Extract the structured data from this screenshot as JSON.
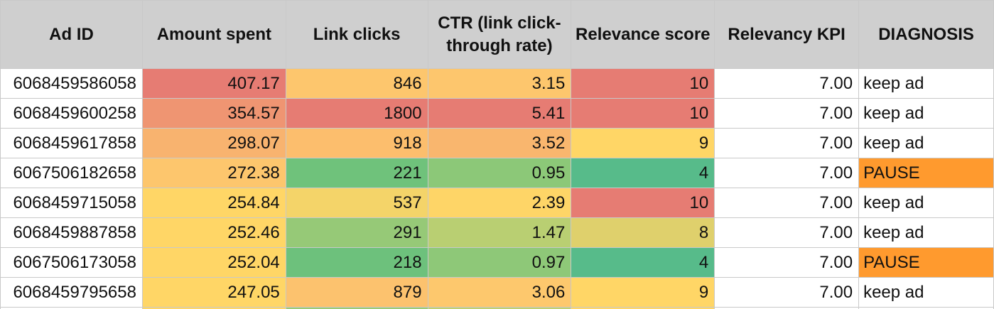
{
  "columns": [
    {
      "key": "ad_id",
      "label": "Ad ID"
    },
    {
      "key": "amount_spent",
      "label": "Amount spent"
    },
    {
      "key": "link_clicks",
      "label": "Link clicks"
    },
    {
      "key": "ctr",
      "label": "CTR (link click-through rate)"
    },
    {
      "key": "relevance_score",
      "label": "Relevance score"
    },
    {
      "key": "relevancy_kpi",
      "label": "Relevancy KPI"
    },
    {
      "key": "diagnosis",
      "label": "DIAGNOSIS"
    }
  ],
  "rows": [
    {
      "ad_id": "6068459586058",
      "amount_spent": "407.17",
      "link_clicks": "846",
      "ctr": "3.15",
      "relevance_score": "10",
      "relevancy_kpi": "7.00",
      "diagnosis": "keep ad",
      "colors": {
        "amount_spent": "#e67c73",
        "link_clicks": "#fdc66d",
        "ctr": "#fdc66d",
        "relevance_score": "#e67c73",
        "diagnosis": "#ffffff"
      }
    },
    {
      "ad_id": "6068459600258",
      "amount_spent": "354.57",
      "link_clicks": "1800",
      "ctr": "5.41",
      "relevance_score": "10",
      "relevancy_kpi": "7.00",
      "diagnosis": "keep ad",
      "colors": {
        "amount_spent": "#ef9572",
        "link_clicks": "#e67c73",
        "ctr": "#e67c73",
        "relevance_score": "#e67c73",
        "diagnosis": "#ffffff"
      }
    },
    {
      "ad_id": "6068459617858",
      "amount_spent": "298.07",
      "link_clicks": "918",
      "ctr": "3.52",
      "relevance_score": "9",
      "relevancy_kpi": "7.00",
      "diagnosis": "keep ad",
      "colors": {
        "amount_spent": "#f8b36f",
        "link_clicks": "#fcbe6d",
        "ctr": "#f9b66e",
        "relevance_score": "#ffd666",
        "diagnosis": "#ffffff"
      }
    },
    {
      "ad_id": "6067506182658",
      "amount_spent": "272.38",
      "link_clicks": "221",
      "ctr": "0.95",
      "relevance_score": "4",
      "relevancy_kpi": "7.00",
      "diagnosis": "PAUSE",
      "colors": {
        "amount_spent": "#fdc66d",
        "link_clicks": "#6fc27b",
        "ctr": "#8cc878",
        "relevance_score": "#57bb8a",
        "diagnosis": "#ff9a2e"
      }
    },
    {
      "ad_id": "6068459715058",
      "amount_spent": "254.84",
      "link_clicks": "537",
      "ctr": "2.39",
      "relevance_score": "10",
      "relevancy_kpi": "7.00",
      "diagnosis": "keep ad",
      "colors": {
        "amount_spent": "#ffd666",
        "link_clicks": "#f4d469",
        "ctr": "#fed567",
        "relevance_score": "#e67c73",
        "diagnosis": "#ffffff"
      }
    },
    {
      "ad_id": "6068459887858",
      "amount_spent": "252.46",
      "link_clicks": "291",
      "ctr": "1.47",
      "relevance_score": "8",
      "relevancy_kpi": "7.00",
      "diagnosis": "keep ad",
      "colors": {
        "amount_spent": "#ffd666",
        "link_clicks": "#96c977",
        "ctr": "#b9cf72",
        "relevance_score": "#dfd06c",
        "diagnosis": "#ffffff"
      }
    },
    {
      "ad_id": "6067506173058",
      "amount_spent": "252.04",
      "link_clicks": "218",
      "ctr": "0.97",
      "relevance_score": "4",
      "relevancy_kpi": "7.00",
      "diagnosis": "PAUSE",
      "colors": {
        "amount_spent": "#ffd666",
        "link_clicks": "#6dc17c",
        "ctr": "#8ec878",
        "relevance_score": "#57bb8a",
        "diagnosis": "#ff9a2e"
      }
    },
    {
      "ad_id": "6068459795658",
      "amount_spent": "247.05",
      "link_clicks": "879",
      "ctr": "3.06",
      "relevance_score": "9",
      "relevancy_kpi": "7.00",
      "diagnosis": "keep ad",
      "colors": {
        "amount_spent": "#ffd666",
        "link_clicks": "#fcc26e",
        "ctr": "#fdc86d",
        "relevance_score": "#ffd666",
        "diagnosis": "#ffffff"
      }
    }
  ],
  "partial_row_colors": {
    "amount_spent": "#ffd666",
    "link_clicks": "#9ccb76",
    "ctr": "#c0d071",
    "relevance_score": "#ffd666"
  }
}
